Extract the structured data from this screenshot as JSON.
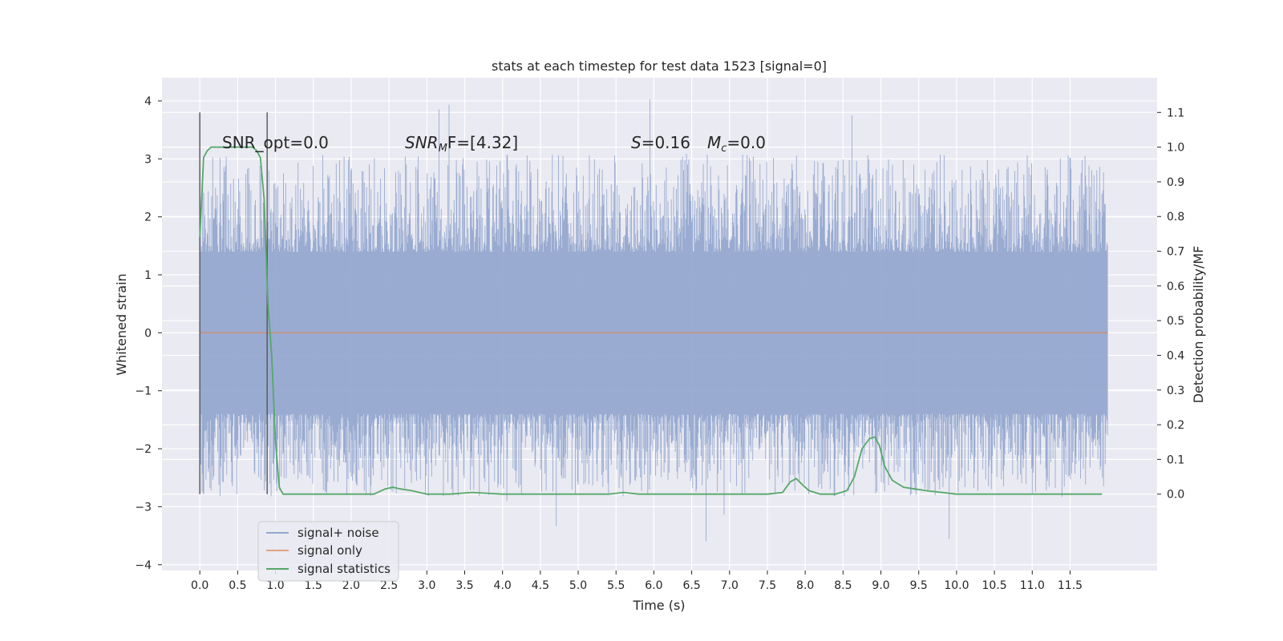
{
  "chart_data": {
    "type": "line",
    "title": "stats at each timestep for test data 1523 [signal=0]",
    "xlabel": "Time (s)",
    "ylabel": "Whitened strain",
    "y2label": "Detection probability/MF",
    "xlim": [
      -0.5,
      12.65
    ],
    "ylim": [
      -4.1,
      4.4
    ],
    "y2lim": [
      -0.22,
      1.2
    ],
    "x_ticks": [
      0.0,
      0.5,
      1.0,
      1.5,
      2.0,
      2.5,
      3.0,
      3.5,
      4.0,
      4.5,
      5.0,
      5.5,
      6.0,
      6.5,
      7.0,
      7.5,
      8.0,
      8.5,
      9.0,
      9.5,
      10.0,
      10.5,
      11.0,
      11.5
    ],
    "x_tick_labels": [
      "0.0",
      "0.5",
      "1.0",
      "1.5",
      "2.0",
      "2.5",
      "3.0",
      "3.5",
      "4.0",
      "4.5",
      "5.0",
      "5.5",
      "6.0",
      "6.5",
      "7.0",
      "7.5",
      "8.0",
      "8.5",
      "9.0",
      "9.5",
      "10.0",
      "10.5",
      "11.0",
      "11.5"
    ],
    "y_ticks": [
      -4,
      -3,
      -2,
      -1,
      0,
      1,
      2,
      3,
      4
    ],
    "y_tick_labels": [
      "−4",
      "−3",
      "−2",
      "−1",
      "0",
      "1",
      "2",
      "3",
      "4"
    ],
    "y2_ticks": [
      0.0,
      0.1,
      0.2,
      0.3,
      0.4,
      0.5,
      0.6,
      0.7,
      0.8,
      0.9,
      1.0,
      1.1
    ],
    "y2_tick_labels": [
      "0.0",
      "0.1",
      "0.2",
      "0.3",
      "0.4",
      "0.5",
      "0.6",
      "0.7",
      "0.8",
      "0.9",
      "1.0",
      "1.1"
    ],
    "grid": true,
    "legend_position": "lower-left",
    "series": [
      {
        "name": "signal+ noise",
        "color": "#95a8cf",
        "x_range": [
          0.0,
          12.0
        ],
        "noise_envelope": {
          "typical": 1.4,
          "max": 4.1,
          "min": -3.7
        }
      },
      {
        "name": "signal only",
        "color": "#dd8452",
        "x": [
          0.0,
          12.0
        ],
        "y": [
          0.0,
          0.0
        ]
      },
      {
        "name": "signal statistics",
        "color": "#55a868",
        "axis": "right",
        "x": [
          0.0,
          0.05,
          0.1,
          0.15,
          0.2,
          0.3,
          0.4,
          0.5,
          0.6,
          0.7,
          0.75,
          0.8,
          0.85,
          0.9,
          0.95,
          1.0,
          1.05,
          1.1,
          1.2,
          1.5,
          2.0,
          2.3,
          2.45,
          2.55,
          2.65,
          2.8,
          3.0,
          3.3,
          3.6,
          4.0,
          5.0,
          5.4,
          5.6,
          5.8,
          6.0,
          7.0,
          7.5,
          7.7,
          7.8,
          7.88,
          7.95,
          8.05,
          8.2,
          8.4,
          8.55,
          8.65,
          8.75,
          8.85,
          8.92,
          8.98,
          9.05,
          9.15,
          9.3,
          9.6,
          10.0,
          11.0,
          11.92
        ],
        "y": [
          0.74,
          0.97,
          0.99,
          1.0,
          1.0,
          1.0,
          1.0,
          1.0,
          1.0,
          1.0,
          0.99,
          0.97,
          0.85,
          0.55,
          0.4,
          0.15,
          0.02,
          0.0,
          0.0,
          0.0,
          0.0,
          0.0,
          0.015,
          0.02,
          0.015,
          0.01,
          0.0,
          0.0,
          0.005,
          0.0,
          0.0,
          0.0,
          0.005,
          0.0,
          0.0,
          0.0,
          0.0,
          0.005,
          0.035,
          0.045,
          0.03,
          0.01,
          0.0,
          0.0,
          0.01,
          0.05,
          0.13,
          0.16,
          0.165,
          0.14,
          0.08,
          0.04,
          0.02,
          0.01,
          0.0,
          0.0,
          0.0
        ]
      }
    ],
    "vertical_lines": [
      0.0,
      0.89
    ],
    "annotations": {
      "snr_opt": "SNR_opt=0.0",
      "snr_mf_prefix": "SNR",
      "snr_mf_sub": "M",
      "snr_mf_suffix": "F=[4.32]",
      "s_symbol": "S",
      "s_value": "=0.16",
      "mc_symbol": "M",
      "mc_sub": "c",
      "mc_value": "=0.0"
    }
  }
}
